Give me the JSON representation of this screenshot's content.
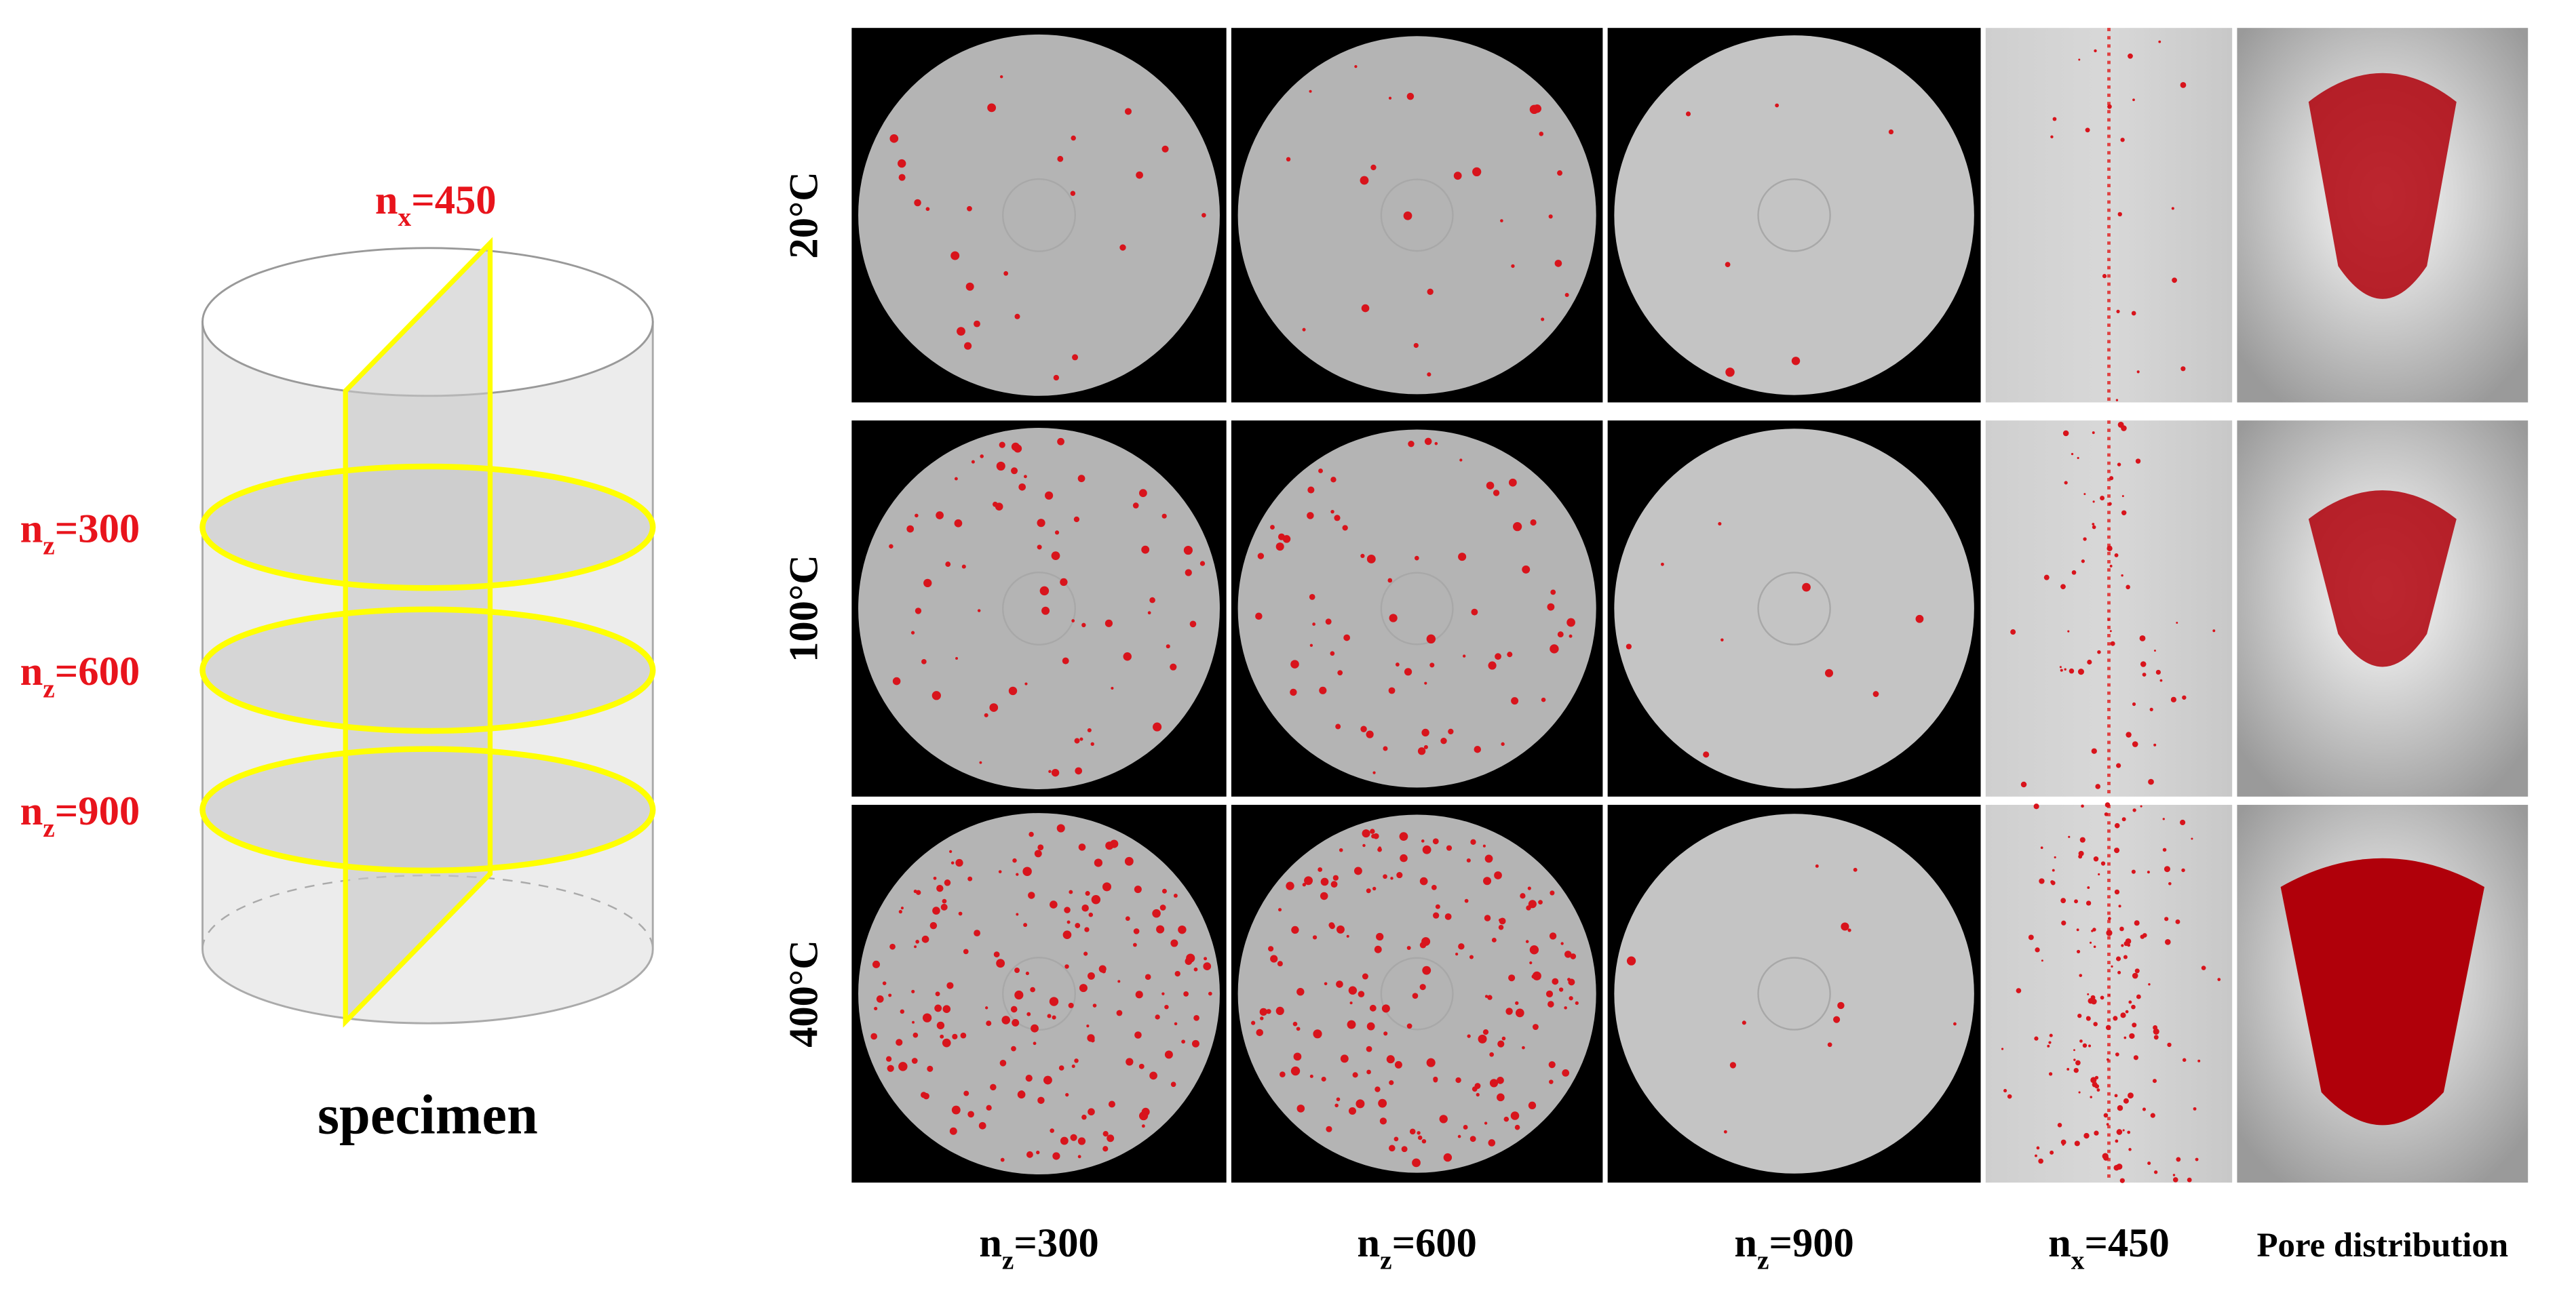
{
  "specimen": {
    "caption": "specimen",
    "planes": [
      {
        "n": "n",
        "sub": "x",
        "rest": "=450"
      },
      {
        "n": "n",
        "sub": "z",
        "rest": "=300"
      },
      {
        "n": "n",
        "sub": "z",
        "rest": "=600"
      },
      {
        "n": "n",
        "sub": "z",
        "rest": "=900"
      }
    ]
  },
  "grid": {
    "rows": [
      "20°C",
      "100°C",
      "400°C"
    ],
    "columns": [
      {
        "n": "n",
        "sub": "z",
        "rest": "=300"
      },
      {
        "n": "n",
        "sub": "z",
        "rest": "=600"
      },
      {
        "n": "n",
        "sub": "z",
        "rest": "=900"
      },
      {
        "n": "n",
        "sub": "x",
        "rest": "=450"
      },
      {
        "text": "Pore distribution"
      }
    ]
  }
}
